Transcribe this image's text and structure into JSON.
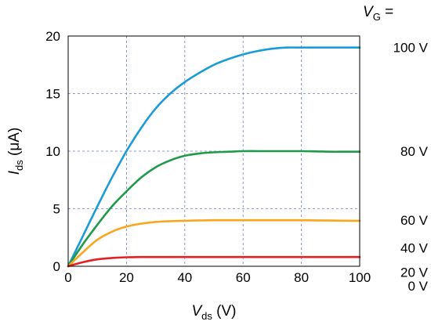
{
  "chart_data": {
    "type": "line",
    "xlabel": {
      "symbol": "V",
      "subscript": "ds",
      "unit": " (V)"
    },
    "ylabel": {
      "symbol": "I",
      "subscript": "ds",
      "unit": " (μA)"
    },
    "xlim": [
      0,
      100
    ],
    "ylim": [
      0,
      20
    ],
    "xticks": [
      0,
      20,
      40,
      60,
      80,
      100
    ],
    "yticks": [
      0,
      5,
      10,
      15,
      20
    ],
    "grid": true,
    "legend_title": {
      "symbol": "V",
      "subscript": "G",
      "suffix": " ="
    },
    "series": [
      {
        "name": "100 V",
        "color": "#1a9bd7",
        "x": [
          0,
          5,
          10,
          15,
          20,
          25,
          30,
          35,
          40,
          45,
          50,
          55,
          60,
          65,
          70,
          75,
          80,
          85,
          90,
          95,
          100
        ],
        "y": [
          0,
          2.6,
          5.2,
          7.7,
          10.0,
          12.0,
          13.7,
          15.0,
          16.0,
          16.8,
          17.5,
          18.0,
          18.4,
          18.7,
          18.9,
          19.0,
          19.0,
          19.0,
          19.0,
          19.0,
          19.0
        ]
      },
      {
        "name": "80 V",
        "color": "#1f9a4a",
        "x": [
          0,
          5,
          10,
          15,
          20,
          25,
          30,
          35,
          40,
          45,
          50,
          55,
          60,
          65,
          70,
          75,
          80,
          85,
          90,
          95,
          100
        ],
        "y": [
          0,
          1.9,
          3.6,
          5.2,
          6.5,
          7.7,
          8.6,
          9.2,
          9.6,
          9.8,
          9.9,
          9.95,
          10.0,
          10.0,
          10.0,
          10.0,
          10.0,
          9.98,
          9.95,
          9.95,
          9.95
        ]
      },
      {
        "name": "60 V",
        "color": "#f8a61c",
        "x": [
          0,
          5,
          10,
          15,
          20,
          25,
          30,
          35,
          40,
          50,
          60,
          70,
          80,
          90,
          100
        ],
        "y": [
          0,
          1.2,
          2.3,
          3.0,
          3.45,
          3.7,
          3.85,
          3.92,
          3.95,
          4.0,
          4.0,
          4.0,
          4.0,
          3.97,
          3.95
        ]
      },
      {
        "name": "40 V",
        "color": "#e52020",
        "x": [
          0,
          5,
          10,
          15,
          20,
          25,
          30,
          40,
          50,
          60,
          70,
          80,
          90,
          100
        ],
        "y": [
          0,
          0.35,
          0.6,
          0.72,
          0.78,
          0.8,
          0.8,
          0.8,
          0.8,
          0.8,
          0.8,
          0.8,
          0.8,
          0.8
        ]
      },
      {
        "name": "20 V",
        "color": "#e52020",
        "x": [
          0,
          100
        ],
        "y": [
          0,
          0
        ]
      },
      {
        "name": "0 V",
        "color": "#e52020",
        "x": [
          0,
          100
        ],
        "y": [
          0,
          0
        ]
      }
    ],
    "right_labels": [
      {
        "text": "100 V",
        "y_value": 19.0
      },
      {
        "text": "80 V",
        "y_value": 10.0
      },
      {
        "text": "60 V",
        "y_value": 4.0
      },
      {
        "text": "40 V",
        "y_value": 1.6
      },
      {
        "text": "20 V",
        "y_value": -0.5
      },
      {
        "text": "0 V",
        "y_value": -1.7
      }
    ]
  }
}
